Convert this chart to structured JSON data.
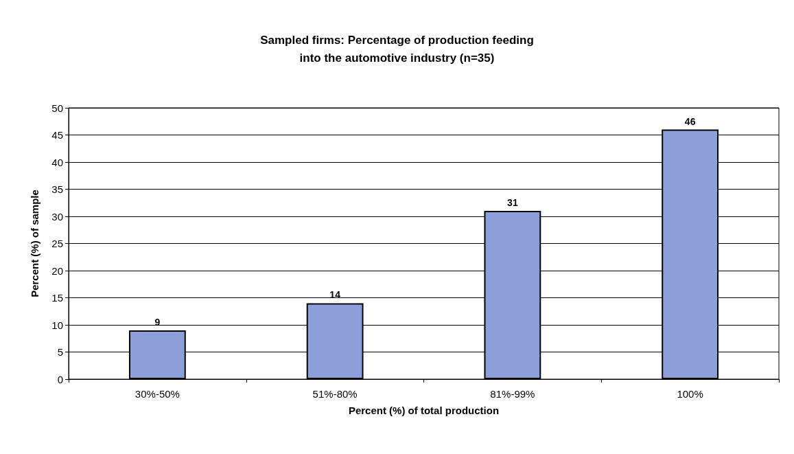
{
  "chart_data": {
    "type": "bar",
    "title": "Sampled firms: Percentage of production feeding\ninto the automotive industry (n=35)",
    "xlabel": "Percent (%) of total production",
    "ylabel": "Percent (%) of sample",
    "categories": [
      "30%-50%",
      "51%-80%",
      "81%-99%",
      "100%"
    ],
    "values": [
      9,
      14,
      31,
      46
    ],
    "color": "#8c9fd9",
    "ylim": [
      0,
      50
    ],
    "yticks": [
      0,
      5,
      10,
      15,
      20,
      25,
      30,
      35,
      40,
      45,
      50
    ],
    "grid": "y",
    "data_labels": true
  }
}
